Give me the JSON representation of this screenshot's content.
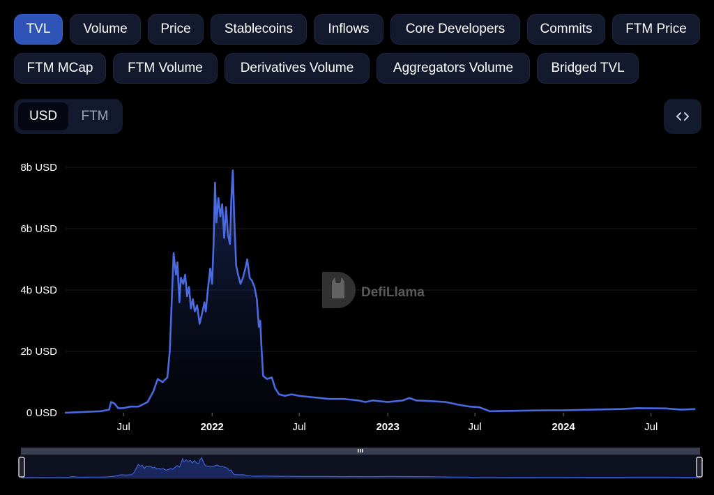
{
  "metric_tabs": [
    {
      "label": "TVL",
      "active": true
    },
    {
      "label": "Volume",
      "active": false
    },
    {
      "label": "Price",
      "active": false
    },
    {
      "label": "Stablecoins",
      "active": false
    },
    {
      "label": "Inflows",
      "active": false
    },
    {
      "label": "Core Developers",
      "active": false
    },
    {
      "label": "Commits",
      "active": false
    },
    {
      "label": "FTM Price",
      "active": false
    },
    {
      "label": "FTM MCap",
      "active": false
    },
    {
      "label": "FTM Volume",
      "active": false
    },
    {
      "label": "Derivatives Volume",
      "active": false
    },
    {
      "label": "Aggregators Volume",
      "active": false
    },
    {
      "label": "Bridged TVL",
      "active": false
    }
  ],
  "denomination": {
    "options": [
      "USD",
      "FTM"
    ],
    "selected": "USD"
  },
  "embed_icon": "code-brackets-icon",
  "watermark": {
    "text": "DefiLlama",
    "icon": "llama-logo-icon"
  },
  "colors": {
    "accent": "#3d5fd6",
    "line": "#4a6ae0",
    "button_bg": "#141a2e",
    "active_button_bg": "#2e54b8"
  },
  "chart_data": {
    "type": "area",
    "series": [
      {
        "name": "TVL",
        "unit": "USD",
        "points": [
          [
            "2021-03-01",
            0.0
          ],
          [
            "2021-05-15",
            0.05
          ],
          [
            "2021-06-01",
            0.1
          ],
          [
            "2021-06-05",
            0.35
          ],
          [
            "2021-06-12",
            0.3
          ],
          [
            "2021-06-20",
            0.15
          ],
          [
            "2021-07-01",
            0.15
          ],
          [
            "2021-07-15",
            0.2
          ],
          [
            "2021-08-01",
            0.2
          ],
          [
            "2021-08-20",
            0.35
          ],
          [
            "2021-09-01",
            0.7
          ],
          [
            "2021-09-10",
            1.1
          ],
          [
            "2021-09-20",
            1.0
          ],
          [
            "2021-09-30",
            1.15
          ],
          [
            "2021-10-05",
            2.0
          ],
          [
            "2021-10-10",
            4.0
          ],
          [
            "2021-10-13",
            5.2
          ],
          [
            "2021-10-18",
            4.5
          ],
          [
            "2021-10-21",
            4.9
          ],
          [
            "2021-10-25",
            3.6
          ],
          [
            "2021-10-28",
            4.4
          ],
          [
            "2021-11-02",
            4.2
          ],
          [
            "2021-11-06",
            4.5
          ],
          [
            "2021-11-10",
            3.8
          ],
          [
            "2021-11-14",
            4.1
          ],
          [
            "2021-11-18",
            3.4
          ],
          [
            "2021-11-22",
            3.7
          ],
          [
            "2021-11-26",
            3.3
          ],
          [
            "2021-12-01",
            3.5
          ],
          [
            "2021-12-06",
            2.9
          ],
          [
            "2021-12-12",
            3.3
          ],
          [
            "2021-12-16",
            3.6
          ],
          [
            "2021-12-19",
            3.3
          ],
          [
            "2021-12-23",
            4.0
          ],
          [
            "2021-12-28",
            4.7
          ],
          [
            "2022-01-01",
            4.2
          ],
          [
            "2022-01-04",
            5.5
          ],
          [
            "2022-01-07",
            7.5
          ],
          [
            "2022-01-10",
            6.2
          ],
          [
            "2022-01-14",
            7.0
          ],
          [
            "2022-01-18",
            6.4
          ],
          [
            "2022-01-22",
            6.8
          ],
          [
            "2022-01-26",
            5.7
          ],
          [
            "2022-01-30",
            6.7
          ],
          [
            "2022-02-03",
            5.8
          ],
          [
            "2022-02-07",
            5.5
          ],
          [
            "2022-02-10",
            7.0
          ],
          [
            "2022-02-13",
            7.9
          ],
          [
            "2022-02-16",
            6.3
          ],
          [
            "2022-02-20",
            4.8
          ],
          [
            "2022-02-24",
            4.5
          ],
          [
            "2022-03-01",
            4.2
          ],
          [
            "2022-03-06",
            4.4
          ],
          [
            "2022-03-11",
            4.7
          ],
          [
            "2022-03-15",
            5.0
          ],
          [
            "2022-03-20",
            4.4
          ],
          [
            "2022-03-25",
            4.3
          ],
          [
            "2022-03-30",
            4.1
          ],
          [
            "2022-04-04",
            3.7
          ],
          [
            "2022-04-08",
            2.8
          ],
          [
            "2022-04-11",
            3.0
          ],
          [
            "2022-04-14",
            2.0
          ],
          [
            "2022-04-17",
            1.2
          ],
          [
            "2022-04-25",
            1.1
          ],
          [
            "2022-05-05",
            1.15
          ],
          [
            "2022-05-12",
            0.8
          ],
          [
            "2022-05-20",
            0.6
          ],
          [
            "2022-06-01",
            0.55
          ],
          [
            "2022-06-15",
            0.6
          ],
          [
            "2022-07-01",
            0.55
          ],
          [
            "2022-08-01",
            0.5
          ],
          [
            "2022-09-01",
            0.45
          ],
          [
            "2022-10-01",
            0.45
          ],
          [
            "2022-11-01",
            0.4
          ],
          [
            "2022-11-15",
            0.35
          ],
          [
            "2022-12-01",
            0.4
          ],
          [
            "2023-01-01",
            0.35
          ],
          [
            "2023-02-01",
            0.4
          ],
          [
            "2023-02-15",
            0.48
          ],
          [
            "2023-03-01",
            0.4
          ],
          [
            "2023-04-01",
            0.38
          ],
          [
            "2023-05-01",
            0.35
          ],
          [
            "2023-06-01",
            0.25
          ],
          [
            "2023-06-20",
            0.2
          ],
          [
            "2023-07-10",
            0.18
          ],
          [
            "2023-08-01",
            0.05
          ],
          [
            "2023-09-01",
            0.06
          ],
          [
            "2023-12-01",
            0.08
          ],
          [
            "2024-01-01",
            0.08
          ],
          [
            "2024-03-01",
            0.1
          ],
          [
            "2024-05-01",
            0.12
          ],
          [
            "2024-06-01",
            0.15
          ],
          [
            "2024-08-01",
            0.14
          ],
          [
            "2024-09-01",
            0.1
          ],
          [
            "2024-10-01",
            0.12
          ]
        ]
      }
    ],
    "x_ticks": [
      {
        "date": "2021-07-01",
        "label": "Jul",
        "bold": false
      },
      {
        "date": "2022-01-01",
        "label": "2022",
        "bold": true
      },
      {
        "date": "2022-07-01",
        "label": "Jul",
        "bold": false
      },
      {
        "date": "2023-01-01",
        "label": "2023",
        "bold": true
      },
      {
        "date": "2023-07-01",
        "label": "Jul",
        "bold": false
      },
      {
        "date": "2024-01-01",
        "label": "2024",
        "bold": true
      },
      {
        "date": "2024-07-01",
        "label": "Jul",
        "bold": false
      }
    ],
    "y_ticks": [
      {
        "value": 0,
        "label": "0 USD"
      },
      {
        "value": 2,
        "label": "2b USD"
      },
      {
        "value": 4,
        "label": "4b USD"
      },
      {
        "value": 6,
        "label": "6b USD"
      },
      {
        "value": 8,
        "label": "8b USD"
      }
    ],
    "xlim": [
      "2021-03-01",
      "2024-10-05"
    ],
    "ylim": [
      0,
      8
    ],
    "y_units": "billions USD",
    "grid": true,
    "legend": "none"
  }
}
